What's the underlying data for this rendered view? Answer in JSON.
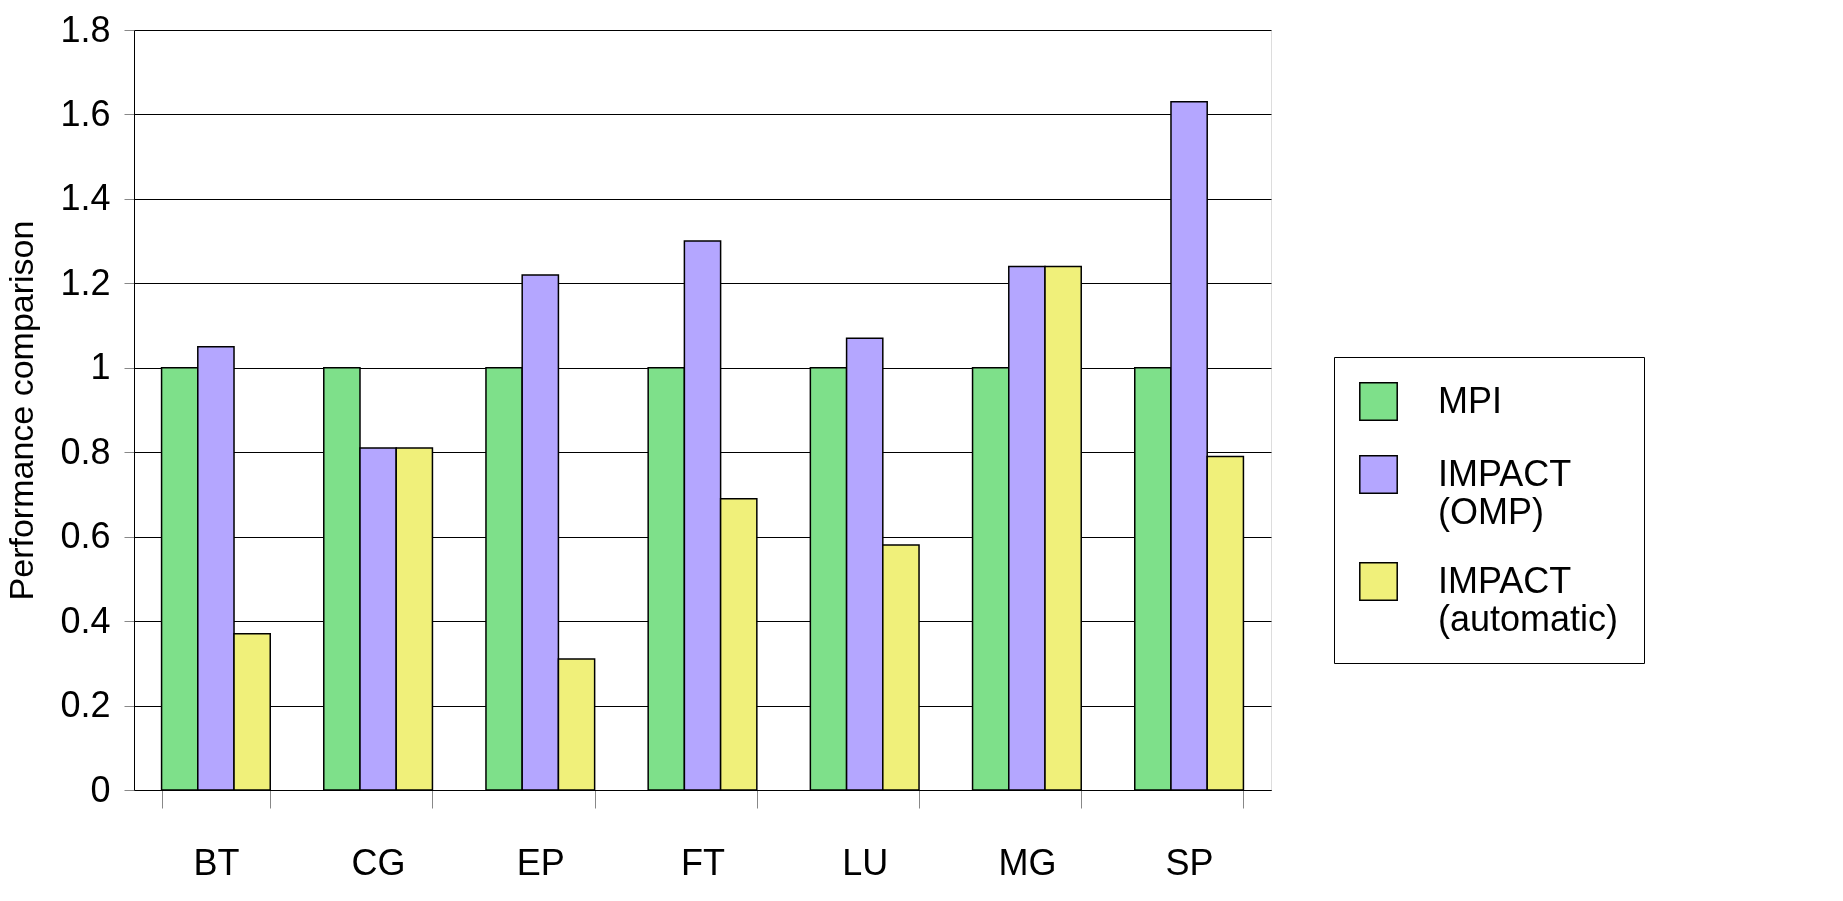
{
  "chart_data": {
    "type": "bar",
    "ylabel": "Performance comparison",
    "categories": [
      "BT",
      "CG",
      "EP",
      "FT",
      "LU",
      "MG",
      "SP"
    ],
    "series": [
      {
        "name": "MPI",
        "color": "#7ee08a",
        "values": [
          1,
          1,
          1,
          1,
          1,
          1,
          1
        ]
      },
      {
        "name": "IMPACT (OMP)",
        "color": "#b4a6ff",
        "values": [
          1.05,
          0.81,
          1.22,
          1.3,
          1.07,
          1.24,
          1.63
        ]
      },
      {
        "name": "IMPACT (automatic)",
        "color": "#f0f07a",
        "values": [
          0.37,
          0.81,
          0.31,
          0.69,
          0.58,
          1.24,
          0.79
        ]
      }
    ],
    "ylim": [
      0,
      1.8
    ],
    "yticks": [
      0,
      0.2,
      0.4,
      0.6,
      0.8,
      1,
      1.2,
      1.4,
      1.6,
      1.8
    ],
    "grid": "y",
    "legend": "right"
  }
}
